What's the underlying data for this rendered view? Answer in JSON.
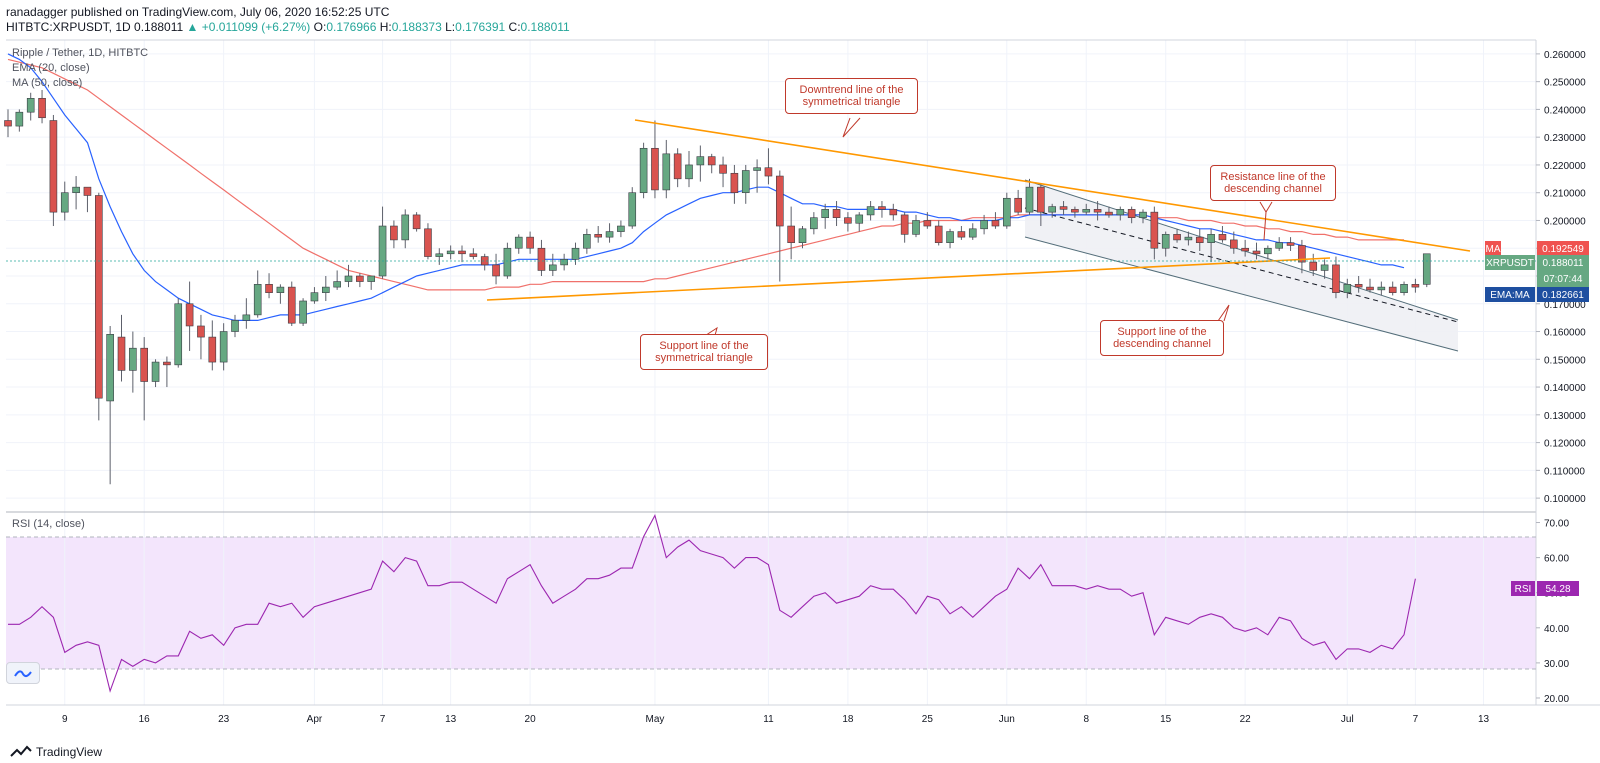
{
  "header": {
    "published": "ranadagger published on TradingView.com, July 06, 2020 16:52:25 UTC",
    "symbol": "HITBTC:XRPUSDT, 1D",
    "last": "0.188011",
    "change": "▲ +0.011099 (+6.27%)",
    "o_label": "O:",
    "o": "0.176966",
    "h_label": "H:",
    "h": "0.188373",
    "l_label": "L:",
    "l": "0.176391",
    "c_label": "C:",
    "c": "0.188011"
  },
  "legend": {
    "title": "Ripple / Tether, 1D, HITBTC",
    "ema": "EMA (20, close)",
    "ma": "MA (50, close)",
    "rsi": "RSI (14, close)"
  },
  "callouts": {
    "downtrend": "Downtrend line of the symmetrical triangle",
    "support_triangle": "Support line of the symmetrical triangle",
    "resistance_channel": "Resistance line of the descending channel",
    "support_channel": "Support line of the descending channel"
  },
  "price_labels": {
    "ma_name": "MA",
    "ma_value": "0.192549",
    "sym_name": "XRPUSDT",
    "sym_value": "0.188011",
    "countdown": "07:07:44",
    "ema_name": "EMA:MA",
    "ema_value": "0.182661",
    "rsi_name": "RSI",
    "rsi_value": "54.28"
  },
  "footer": {
    "brand": "TradingView"
  },
  "colors": {
    "up": "#26a69a",
    "up_fill": "#66a882",
    "down": "#ef5350",
    "down_fill": "#d9534f",
    "ema": "#2962ff",
    "ma": "#f0716b",
    "trendline": "#ff9800",
    "channel": "#546e7a",
    "rsi": "#9c27b0",
    "rsi_band": "#f3e5fc",
    "annotation": "#c0392b"
  },
  "chart_data": {
    "type": "candlestick",
    "title": "Ripple / Tether, 1D, HITBTC",
    "price_axis": {
      "min": 0.095,
      "max": 0.265,
      "ticks": [
        "0.100000",
        "0.110000",
        "0.120000",
        "0.130000",
        "0.140000",
        "0.150000",
        "0.160000",
        "0.170000",
        "0.180000",
        "0.190000",
        "0.200000",
        "0.210000",
        "0.220000",
        "0.230000",
        "0.240000",
        "0.250000",
        "0.260000"
      ]
    },
    "rsi_axis": {
      "min": 18,
      "max": 73,
      "ticks": [
        "20.00",
        "30.00",
        "40.00",
        "50.00",
        "60.00",
        "70.00"
      ],
      "band": [
        30,
        70
      ]
    },
    "x_labels": [
      {
        "label": "9",
        "i": 5
      },
      {
        "label": "16",
        "i": 12
      },
      {
        "label": "23",
        "i": 19
      },
      {
        "label": "Apr",
        "i": 27
      },
      {
        "label": "7",
        "i": 33
      },
      {
        "label": "13",
        "i": 39
      },
      {
        "label": "20",
        "i": 46
      },
      {
        "label": "May",
        "i": 57
      },
      {
        "label": "11",
        "i": 67
      },
      {
        "label": "18",
        "i": 74
      },
      {
        "label": "25",
        "i": 81
      },
      {
        "label": "Jun",
        "i": 88
      },
      {
        "label": "8",
        "i": 95
      },
      {
        "label": "15",
        "i": 102
      },
      {
        "label": "22",
        "i": 109
      },
      {
        "label": "Jul",
        "i": 118
      },
      {
        "label": "7",
        "i": 124
      },
      {
        "label": "13",
        "i": 130
      }
    ],
    "ohlc": [
      [
        0.236,
        0.24,
        0.23,
        0.234
      ],
      [
        0.234,
        0.24,
        0.232,
        0.239
      ],
      [
        0.239,
        0.246,
        0.236,
        0.244
      ],
      [
        0.244,
        0.247,
        0.235,
        0.237
      ],
      [
        0.236,
        0.238,
        0.198,
        0.203
      ],
      [
        0.203,
        0.214,
        0.2,
        0.21
      ],
      [
        0.21,
        0.216,
        0.204,
        0.212
      ],
      [
        0.212,
        0.212,
        0.203,
        0.209
      ],
      [
        0.209,
        0.21,
        0.128,
        0.136
      ],
      [
        0.135,
        0.162,
        0.105,
        0.159
      ],
      [
        0.158,
        0.166,
        0.142,
        0.146
      ],
      [
        0.146,
        0.16,
        0.138,
        0.154
      ],
      [
        0.154,
        0.158,
        0.128,
        0.142
      ],
      [
        0.142,
        0.15,
        0.14,
        0.149
      ],
      [
        0.149,
        0.151,
        0.14,
        0.148
      ],
      [
        0.148,
        0.172,
        0.147,
        0.17
      ],
      [
        0.17,
        0.178,
        0.153,
        0.162
      ],
      [
        0.162,
        0.166,
        0.15,
        0.158
      ],
      [
        0.158,
        0.164,
        0.146,
        0.149
      ],
      [
        0.149,
        0.163,
        0.146,
        0.16
      ],
      [
        0.16,
        0.166,
        0.158,
        0.164
      ],
      [
        0.164,
        0.172,
        0.161,
        0.166
      ],
      [
        0.166,
        0.182,
        0.165,
        0.177
      ],
      [
        0.177,
        0.181,
        0.172,
        0.174
      ],
      [
        0.174,
        0.177,
        0.17,
        0.176
      ],
      [
        0.176,
        0.178,
        0.162,
        0.163
      ],
      [
        0.163,
        0.172,
        0.162,
        0.171
      ],
      [
        0.171,
        0.176,
        0.17,
        0.174
      ],
      [
        0.174,
        0.18,
        0.171,
        0.176
      ],
      [
        0.176,
        0.182,
        0.175,
        0.178
      ],
      [
        0.178,
        0.184,
        0.176,
        0.18
      ],
      [
        0.18,
        0.181,
        0.176,
        0.178
      ],
      [
        0.178,
        0.18,
        0.175,
        0.18
      ],
      [
        0.18,
        0.205,
        0.179,
        0.198
      ],
      [
        0.198,
        0.2,
        0.19,
        0.193
      ],
      [
        0.193,
        0.204,
        0.19,
        0.202
      ],
      [
        0.202,
        0.203,
        0.196,
        0.197
      ],
      [
        0.197,
        0.199,
        0.186,
        0.187
      ],
      [
        0.187,
        0.19,
        0.184,
        0.188
      ],
      [
        0.188,
        0.191,
        0.186,
        0.189
      ],
      [
        0.189,
        0.191,
        0.185,
        0.188
      ],
      [
        0.188,
        0.19,
        0.186,
        0.187
      ],
      [
        0.187,
        0.188,
        0.182,
        0.184
      ],
      [
        0.184,
        0.188,
        0.177,
        0.18
      ],
      [
        0.18,
        0.192,
        0.179,
        0.19
      ],
      [
        0.19,
        0.195,
        0.188,
        0.194
      ],
      [
        0.194,
        0.196,
        0.188,
        0.19
      ],
      [
        0.19,
        0.193,
        0.18,
        0.182
      ],
      [
        0.182,
        0.188,
        0.18,
        0.184
      ],
      [
        0.184,
        0.188,
        0.182,
        0.186
      ],
      [
        0.186,
        0.192,
        0.184,
        0.19
      ],
      [
        0.19,
        0.197,
        0.188,
        0.195
      ],
      [
        0.195,
        0.198,
        0.192,
        0.194
      ],
      [
        0.194,
        0.199,
        0.192,
        0.196
      ],
      [
        0.196,
        0.2,
        0.194,
        0.198
      ],
      [
        0.198,
        0.212,
        0.197,
        0.21
      ],
      [
        0.21,
        0.228,
        0.208,
        0.226
      ],
      [
        0.226,
        0.236,
        0.208,
        0.211
      ],
      [
        0.211,
        0.229,
        0.208,
        0.224
      ],
      [
        0.224,
        0.226,
        0.212,
        0.215
      ],
      [
        0.215,
        0.225,
        0.212,
        0.22
      ],
      [
        0.22,
        0.227,
        0.214,
        0.223
      ],
      [
        0.223,
        0.224,
        0.217,
        0.22
      ],
      [
        0.22,
        0.223,
        0.212,
        0.217
      ],
      [
        0.217,
        0.22,
        0.206,
        0.21
      ],
      [
        0.21,
        0.22,
        0.206,
        0.218
      ],
      [
        0.218,
        0.222,
        0.21,
        0.219
      ],
      [
        0.219,
        0.226,
        0.213,
        0.216
      ],
      [
        0.216,
        0.218,
        0.178,
        0.198
      ],
      [
        0.198,
        0.205,
        0.186,
        0.192
      ],
      [
        0.192,
        0.198,
        0.19,
        0.197
      ],
      [
        0.197,
        0.203,
        0.195,
        0.201
      ],
      [
        0.201,
        0.206,
        0.197,
        0.204
      ],
      [
        0.204,
        0.207,
        0.198,
        0.201
      ],
      [
        0.201,
        0.203,
        0.196,
        0.199
      ],
      [
        0.199,
        0.203,
        0.196,
        0.202
      ],
      [
        0.202,
        0.207,
        0.2,
        0.205
      ],
      [
        0.205,
        0.207,
        0.201,
        0.204
      ],
      [
        0.204,
        0.206,
        0.2,
        0.202
      ],
      [
        0.202,
        0.203,
        0.192,
        0.195
      ],
      [
        0.195,
        0.202,
        0.194,
        0.2
      ],
      [
        0.2,
        0.203,
        0.197,
        0.198
      ],
      [
        0.198,
        0.2,
        0.191,
        0.192
      ],
      [
        0.192,
        0.197,
        0.19,
        0.196
      ],
      [
        0.196,
        0.198,
        0.193,
        0.194
      ],
      [
        0.194,
        0.199,
        0.193,
        0.197
      ],
      [
        0.197,
        0.202,
        0.195,
        0.2
      ],
      [
        0.2,
        0.203,
        0.197,
        0.198
      ],
      [
        0.198,
        0.21,
        0.197,
        0.208
      ],
      [
        0.208,
        0.211,
        0.202,
        0.203
      ],
      [
        0.203,
        0.215,
        0.202,
        0.212
      ],
      [
        0.212,
        0.213,
        0.198,
        0.203
      ],
      [
        0.203,
        0.206,
        0.201,
        0.205
      ],
      [
        0.205,
        0.207,
        0.202,
        0.204
      ],
      [
        0.204,
        0.205,
        0.201,
        0.203
      ],
      [
        0.203,
        0.206,
        0.202,
        0.204
      ],
      [
        0.204,
        0.207,
        0.2,
        0.203
      ],
      [
        0.203,
        0.205,
        0.201,
        0.202
      ],
      [
        0.202,
        0.205,
        0.2,
        0.204
      ],
      [
        0.204,
        0.205,
        0.199,
        0.201
      ],
      [
        0.201,
        0.204,
        0.199,
        0.203
      ],
      [
        0.203,
        0.205,
        0.186,
        0.19
      ],
      [
        0.19,
        0.196,
        0.187,
        0.195
      ],
      [
        0.195,
        0.197,
        0.192,
        0.193
      ],
      [
        0.193,
        0.196,
        0.191,
        0.194
      ],
      [
        0.194,
        0.197,
        0.189,
        0.192
      ],
      [
        0.192,
        0.197,
        0.185,
        0.195
      ],
      [
        0.195,
        0.198,
        0.192,
        0.193
      ],
      [
        0.193,
        0.196,
        0.188,
        0.19
      ],
      [
        0.19,
        0.193,
        0.187,
        0.189
      ],
      [
        0.189,
        0.192,
        0.186,
        0.188
      ],
      [
        0.188,
        0.191,
        0.186,
        0.19
      ],
      [
        0.19,
        0.194,
        0.189,
        0.192
      ],
      [
        0.192,
        0.194,
        0.189,
        0.191
      ],
      [
        0.191,
        0.193,
        0.181,
        0.185
      ],
      [
        0.185,
        0.188,
        0.18,
        0.182
      ],
      [
        0.182,
        0.186,
        0.179,
        0.184
      ],
      [
        0.184,
        0.187,
        0.172,
        0.174
      ],
      [
        0.174,
        0.179,
        0.172,
        0.177
      ],
      [
        0.177,
        0.18,
        0.174,
        0.176
      ],
      [
        0.176,
        0.179,
        0.174,
        0.175
      ],
      [
        0.175,
        0.178,
        0.173,
        0.176
      ],
      [
        0.176,
        0.178,
        0.173,
        0.174
      ],
      [
        0.174,
        0.178,
        0.173,
        0.177
      ],
      [
        0.177,
        0.179,
        0.174,
        0.176
      ],
      [
        0.177,
        0.188,
        0.176,
        0.188
      ]
    ],
    "ema20": [
      0.26,
      0.258,
      0.255,
      0.25,
      0.244,
      0.238,
      0.233,
      0.228,
      0.215,
      0.205,
      0.196,
      0.188,
      0.182,
      0.178,
      0.175,
      0.172,
      0.17,
      0.168,
      0.166,
      0.165,
      0.164,
      0.164,
      0.164,
      0.165,
      0.166,
      0.166,
      0.166,
      0.167,
      0.168,
      0.169,
      0.17,
      0.171,
      0.172,
      0.174,
      0.176,
      0.178,
      0.18,
      0.181,
      0.182,
      0.183,
      0.184,
      0.184,
      0.184,
      0.184,
      0.185,
      0.186,
      0.186,
      0.186,
      0.186,
      0.186,
      0.186,
      0.187,
      0.188,
      0.189,
      0.19,
      0.192,
      0.196,
      0.199,
      0.202,
      0.204,
      0.206,
      0.208,
      0.209,
      0.21,
      0.21,
      0.211,
      0.212,
      0.212,
      0.21,
      0.208,
      0.206,
      0.206,
      0.205,
      0.205,
      0.204,
      0.204,
      0.204,
      0.204,
      0.204,
      0.203,
      0.203,
      0.202,
      0.201,
      0.201,
      0.2,
      0.2,
      0.2,
      0.2,
      0.201,
      0.201,
      0.202,
      0.202,
      0.202,
      0.202,
      0.202,
      0.202,
      0.202,
      0.202,
      0.202,
      0.202,
      0.202,
      0.201,
      0.2,
      0.199,
      0.198,
      0.197,
      0.197,
      0.196,
      0.195,
      0.194,
      0.193,
      0.193,
      0.192,
      0.192,
      0.191,
      0.19,
      0.189,
      0.188,
      0.187,
      0.186,
      0.185,
      0.184,
      0.184,
      0.183
    ],
    "ma50": [
      0.258,
      0.257,
      0.256,
      0.255,
      0.253,
      0.251,
      0.249,
      0.247,
      0.244,
      0.241,
      0.238,
      0.235,
      0.232,
      0.229,
      0.226,
      0.223,
      0.22,
      0.217,
      0.214,
      0.211,
      0.208,
      0.205,
      0.202,
      0.199,
      0.196,
      0.193,
      0.19,
      0.188,
      0.186,
      0.184,
      0.182,
      0.181,
      0.18,
      0.179,
      0.178,
      0.177,
      0.176,
      0.175,
      0.175,
      0.175,
      0.175,
      0.175,
      0.175,
      0.176,
      0.176,
      0.176,
      0.177,
      0.177,
      0.178,
      0.178,
      0.178,
      0.178,
      0.178,
      0.178,
      0.178,
      0.178,
      0.178,
      0.179,
      0.179,
      0.18,
      0.181,
      0.182,
      0.183,
      0.184,
      0.185,
      0.186,
      0.187,
      0.188,
      0.189,
      0.19,
      0.191,
      0.192,
      0.193,
      0.194,
      0.195,
      0.196,
      0.197,
      0.198,
      0.198,
      0.199,
      0.199,
      0.2,
      0.2,
      0.2,
      0.2,
      0.201,
      0.201,
      0.201,
      0.201,
      0.202,
      0.202,
      0.202,
      0.202,
      0.202,
      0.202,
      0.202,
      0.202,
      0.202,
      0.202,
      0.202,
      0.202,
      0.201,
      0.201,
      0.201,
      0.2,
      0.2,
      0.2,
      0.199,
      0.199,
      0.198,
      0.198,
      0.197,
      0.197,
      0.196,
      0.196,
      0.195,
      0.195,
      0.194,
      0.194,
      0.193,
      0.193,
      0.193,
      0.193,
      0.193
    ],
    "rsi": [
      41,
      41,
      43,
      46,
      43,
      33,
      35,
      36,
      35,
      22,
      31,
      29,
      31,
      30,
      32,
      32,
      39,
      37,
      38,
      35,
      40,
      41,
      41,
      47,
      46,
      47,
      43,
      46,
      47,
      48,
      49,
      50,
      51,
      59,
      56,
      60,
      59,
      52,
      52,
      53,
      53,
      51,
      49,
      47,
      54,
      56,
      58,
      52,
      47,
      49,
      51,
      54,
      54,
      55,
      57,
      57,
      66,
      72,
      60,
      63,
      65,
      62,
      61,
      60,
      57,
      60,
      60,
      58,
      45,
      43,
      46,
      49,
      50,
      47,
      48,
      49,
      52,
      51,
      51,
      48,
      44,
      49,
      48,
      44,
      46,
      43,
      46,
      49,
      51,
      57,
      54,
      58,
      52,
      52,
      52,
      51,
      52,
      51,
      51,
      49,
      50,
      38,
      43,
      42,
      41,
      43,
      44,
      43,
      40,
      39,
      40,
      38,
      43,
      42,
      37,
      35,
      36,
      31,
      34,
      34,
      33,
      35,
      34,
      38,
      54
    ]
  }
}
